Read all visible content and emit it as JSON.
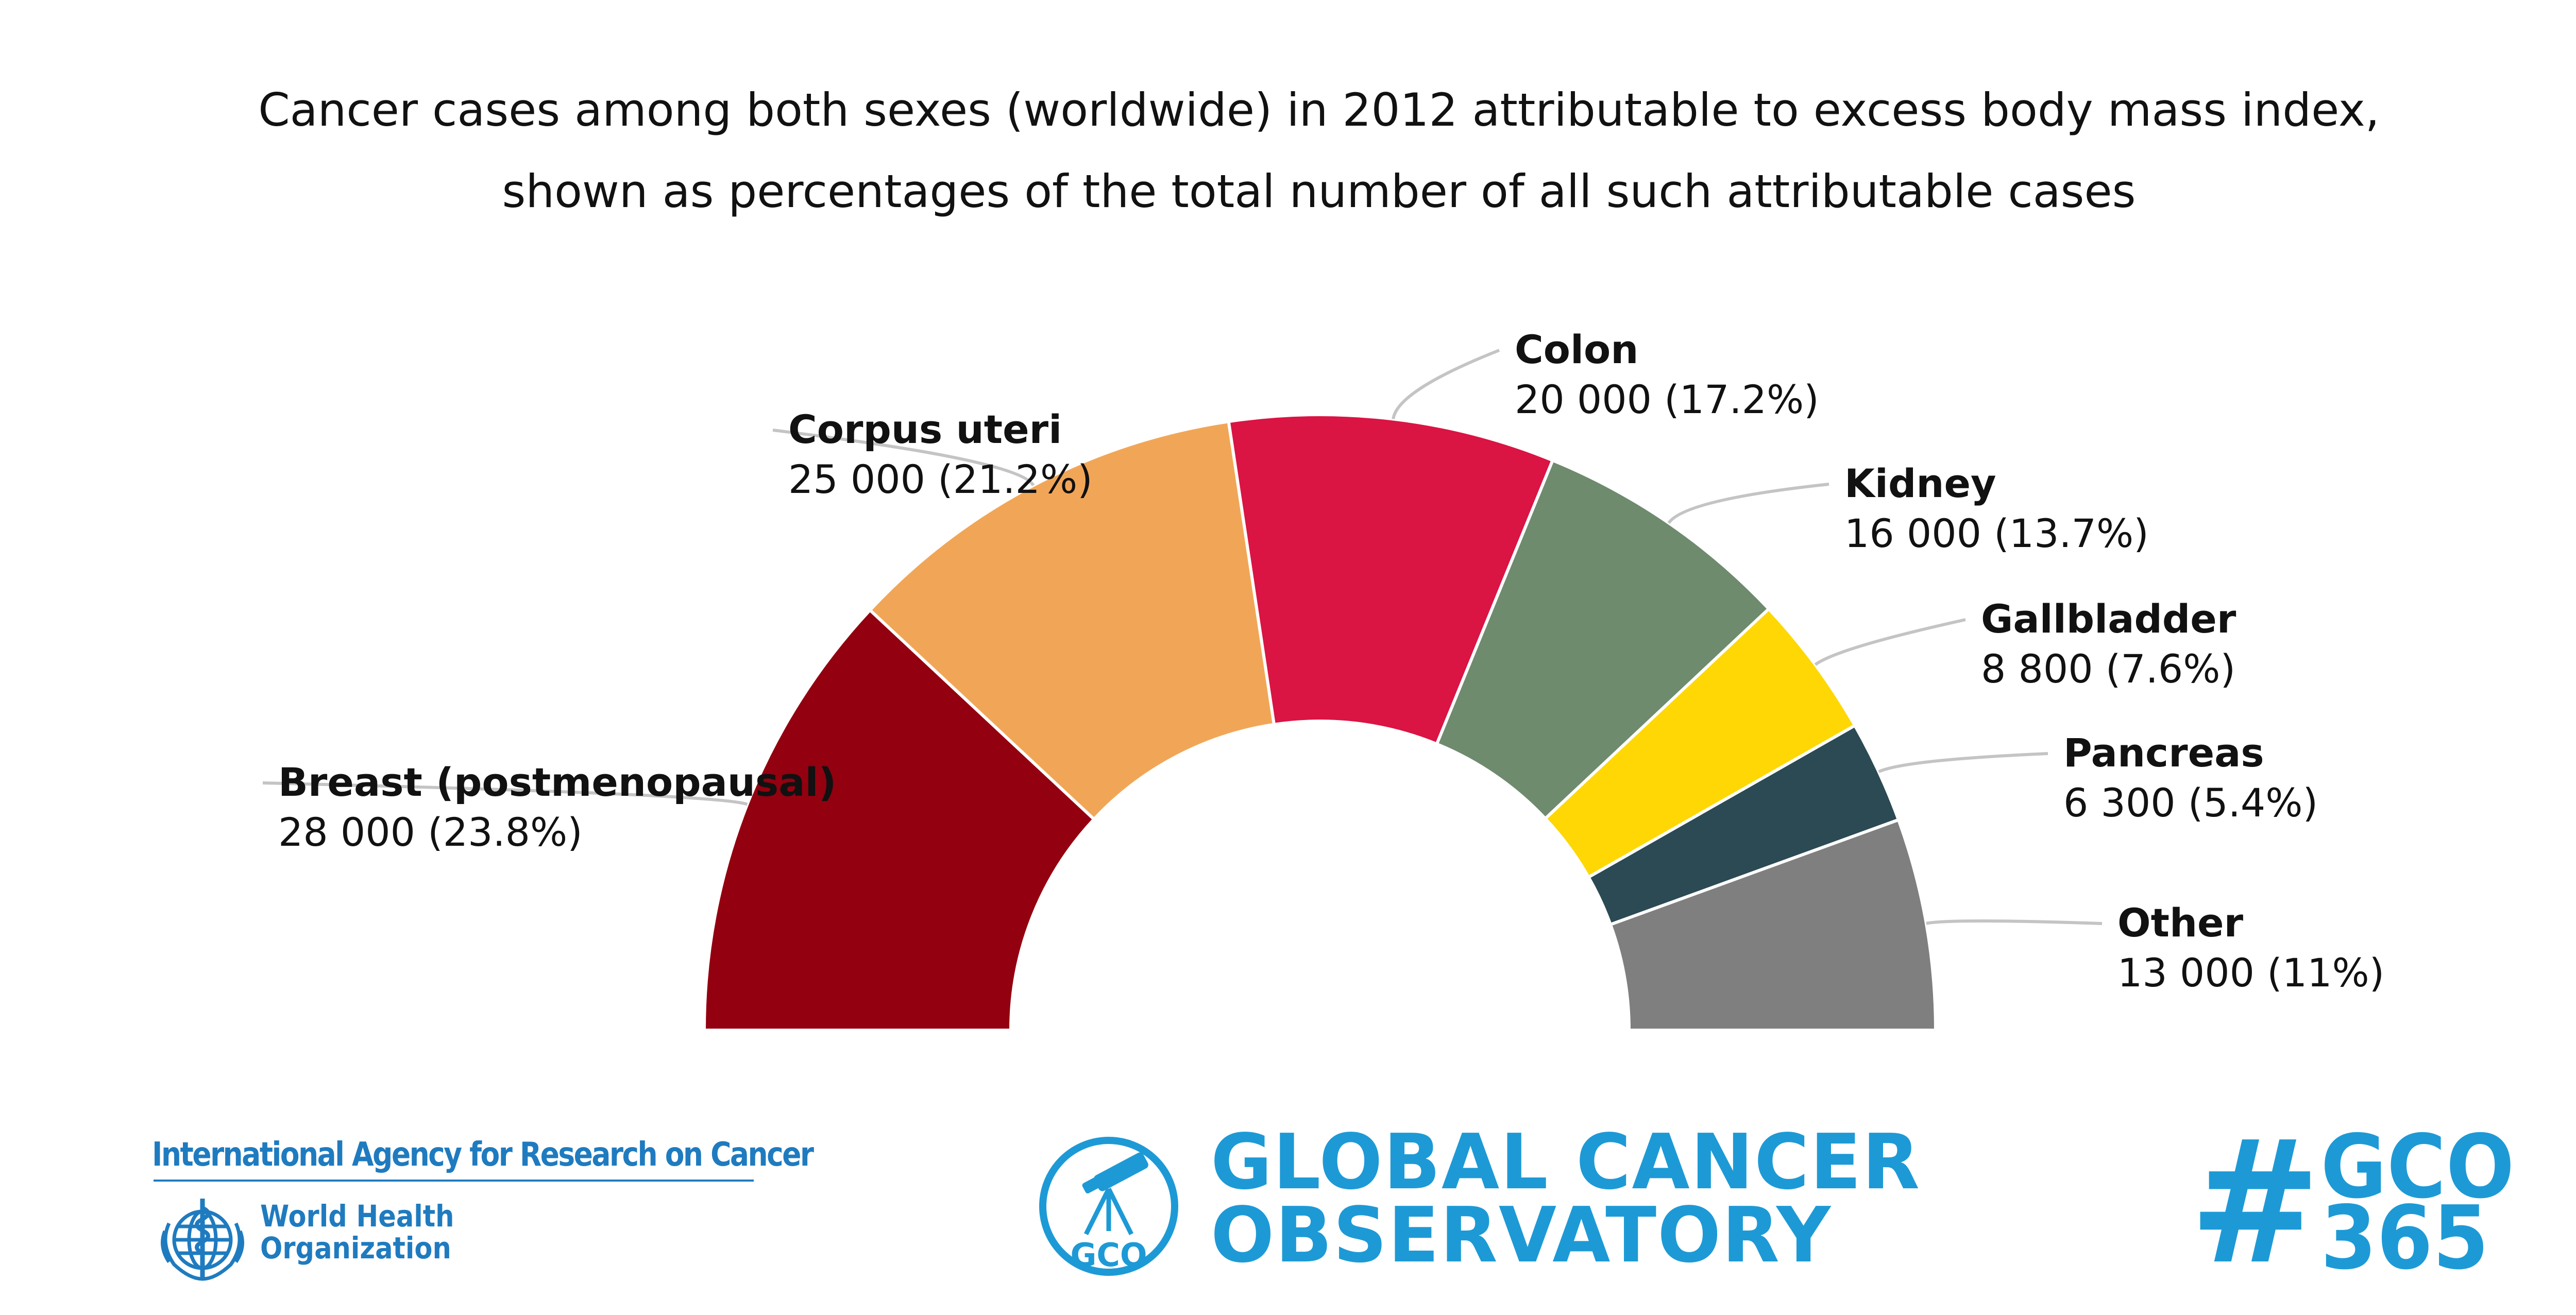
{
  "chart_data": {
    "type": "pie",
    "variant": "half-donut",
    "title_lines": [
      "Cancer cases among both sexes (worldwide) in 2012 attributable to excess body mass index,",
      "shown as percentages of the total number of all such attributable cases"
    ],
    "slices": [
      {
        "name": "Breast (postmenopausal)",
        "value": 28000,
        "percent": 23.8,
        "value_label": "28 000 (23.8%)",
        "color": "#93000f"
      },
      {
        "name": "Corpus uteri",
        "value": 25000,
        "percent": 21.2,
        "value_label": "25 000 (21.2%)",
        "color": "#f1a657"
      },
      {
        "name": "Colon",
        "value": 20000,
        "percent": 17.2,
        "value_label": "20 000 (17.2%)",
        "color": "#da1443"
      },
      {
        "name": "Kidney",
        "value": 16000,
        "percent": 13.7,
        "value_label": "16 000 (13.7%)",
        "color": "#6e8b6d"
      },
      {
        "name": "Gallbladder",
        "value": 8800,
        "percent": 7.6,
        "value_label": "8 800 (7.6%)",
        "color": "#fed705"
      },
      {
        "name": "Pancreas",
        "value": 6300,
        "percent": 5.4,
        "value_label": "6 300 (5.4%)",
        "color": "#2b4a53"
      },
      {
        "name": "Other",
        "value": 13000,
        "percent": 11,
        "value_label": "13 000 (11%)",
        "color": "#7f7f7f"
      }
    ],
    "legend": "none (direct labels)"
  },
  "footer": {
    "iarc_name": "International Agency for Research on Cancer",
    "who_line1": "World Health",
    "who_line2": "Organization",
    "gco_badge": "GCO",
    "gco_line1": "GLOBAL CANCER",
    "gco_line2": "OBSERVATORY",
    "hashtag_symbol": "#",
    "hashtag_line1": "GCO",
    "hashtag_line2": "365"
  },
  "colors": {
    "brand_blue": "#1d9ad6",
    "iarc_blue": "#1f7bbf"
  }
}
